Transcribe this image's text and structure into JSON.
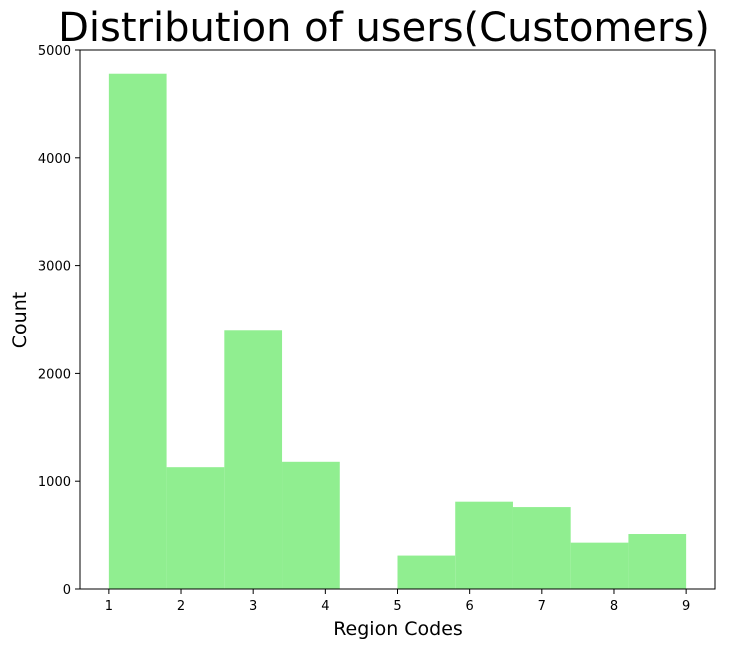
{
  "chart_data": {
    "type": "bar",
    "title": "Distribution of users(Customers)",
    "xlabel": "Region Codes",
    "ylabel": "Count",
    "bar_color": "#90ee90",
    "xlim": [
      0.6,
      9.4
    ],
    "ylim": [
      0,
      5000
    ],
    "x_ticks": [
      "1",
      "2",
      "3",
      "4",
      "5",
      "6",
      "7",
      "8",
      "9"
    ],
    "y_ticks": [
      "0",
      "1000",
      "2000",
      "3000",
      "4000",
      "5000"
    ],
    "bins": [
      {
        "start": 1.0,
        "end": 1.8,
        "value": 4780
      },
      {
        "start": 1.8,
        "end": 2.6,
        "value": 1130
      },
      {
        "start": 2.6,
        "end": 3.4,
        "value": 2400
      },
      {
        "start": 3.4,
        "end": 4.2,
        "value": 1180
      },
      {
        "start": 4.2,
        "end": 5.0,
        "value": 0
      },
      {
        "start": 5.0,
        "end": 5.8,
        "value": 310
      },
      {
        "start": 5.8,
        "end": 6.6,
        "value": 810
      },
      {
        "start": 6.6,
        "end": 7.4,
        "value": 760
      },
      {
        "start": 7.4,
        "end": 8.2,
        "value": 430
      },
      {
        "start": 8.2,
        "end": 9.0,
        "value": 510
      }
    ],
    "grid": false,
    "legend": "none"
  }
}
